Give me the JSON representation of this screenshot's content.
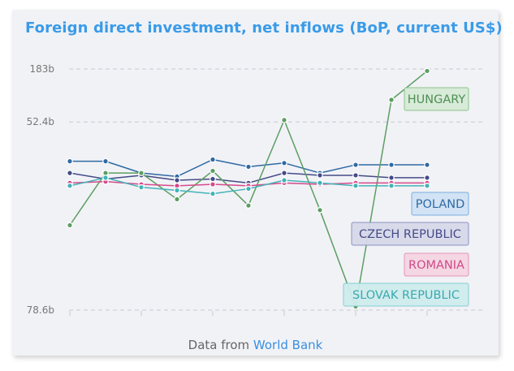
{
  "title": "Foreign direct investment, net inflows (BoP, current US$)",
  "source": {
    "prefix": "Data from ",
    "link_text": "World Bank"
  },
  "chart_data": {
    "type": "line",
    "title": "Foreign direct investment, net inflows (BoP, current US$)",
    "y_scale": "symlog",
    "y_ticks": [
      {
        "label": "183b",
        "value": 183
      },
      {
        "label": "52.4b",
        "value": 52.4
      },
      {
        "label": "78.6b",
        "value": -78.6
      }
    ],
    "ylim": [
      -78.6,
      183
    ],
    "x_count": 11,
    "grid": true,
    "series": [
      {
        "name": "POLAND",
        "color": "#2f6aa3",
        "label_bg": "#cfe1f3",
        "label_border": "#7aaee0",
        "label_text": "#2f6aa3",
        "values": [
          17,
          17,
          11,
          9.5,
          18,
          14,
          16,
          11,
          15,
          15,
          15
        ]
      },
      {
        "name": "CZECH REPUBLIC",
        "color": "#454b87",
        "label_bg": "#d6d8e9",
        "label_border": "#8d92c4",
        "label_text": "#454b87",
        "values": [
          11,
          8.5,
          10,
          8,
          8.5,
          7,
          11,
          10,
          10,
          9,
          9
        ]
      },
      {
        "name": "HUNGARY",
        "color": "#5c9e62",
        "label_bg": "#d6e9d6",
        "label_border": "#8cc48c",
        "label_text": "#4e8f55",
        "values": [
          -4.5,
          11,
          11,
          2,
          12,
          0.5,
          55,
          -0.5,
          -72,
          90,
          175
        ]
      },
      {
        "name": "ROMANIA",
        "color": "#d64a8a",
        "label_bg": "#f4d4e2",
        "label_border": "#e594b8",
        "label_text": "#d04a88",
        "values": [
          7,
          7.5,
          6.5,
          6,
          6.5,
          6,
          7,
          6.5,
          7,
          7,
          7
        ]
      },
      {
        "name": "SLOVAK REPUBLIC",
        "color": "#44b3b8",
        "label_bg": "#cdebec",
        "label_border": "#86cfd2",
        "label_text": "#3aa9ae",
        "values": [
          6,
          9,
          5.5,
          4.5,
          3.5,
          5,
          8,
          7,
          6,
          6,
          6
        ]
      }
    ]
  }
}
